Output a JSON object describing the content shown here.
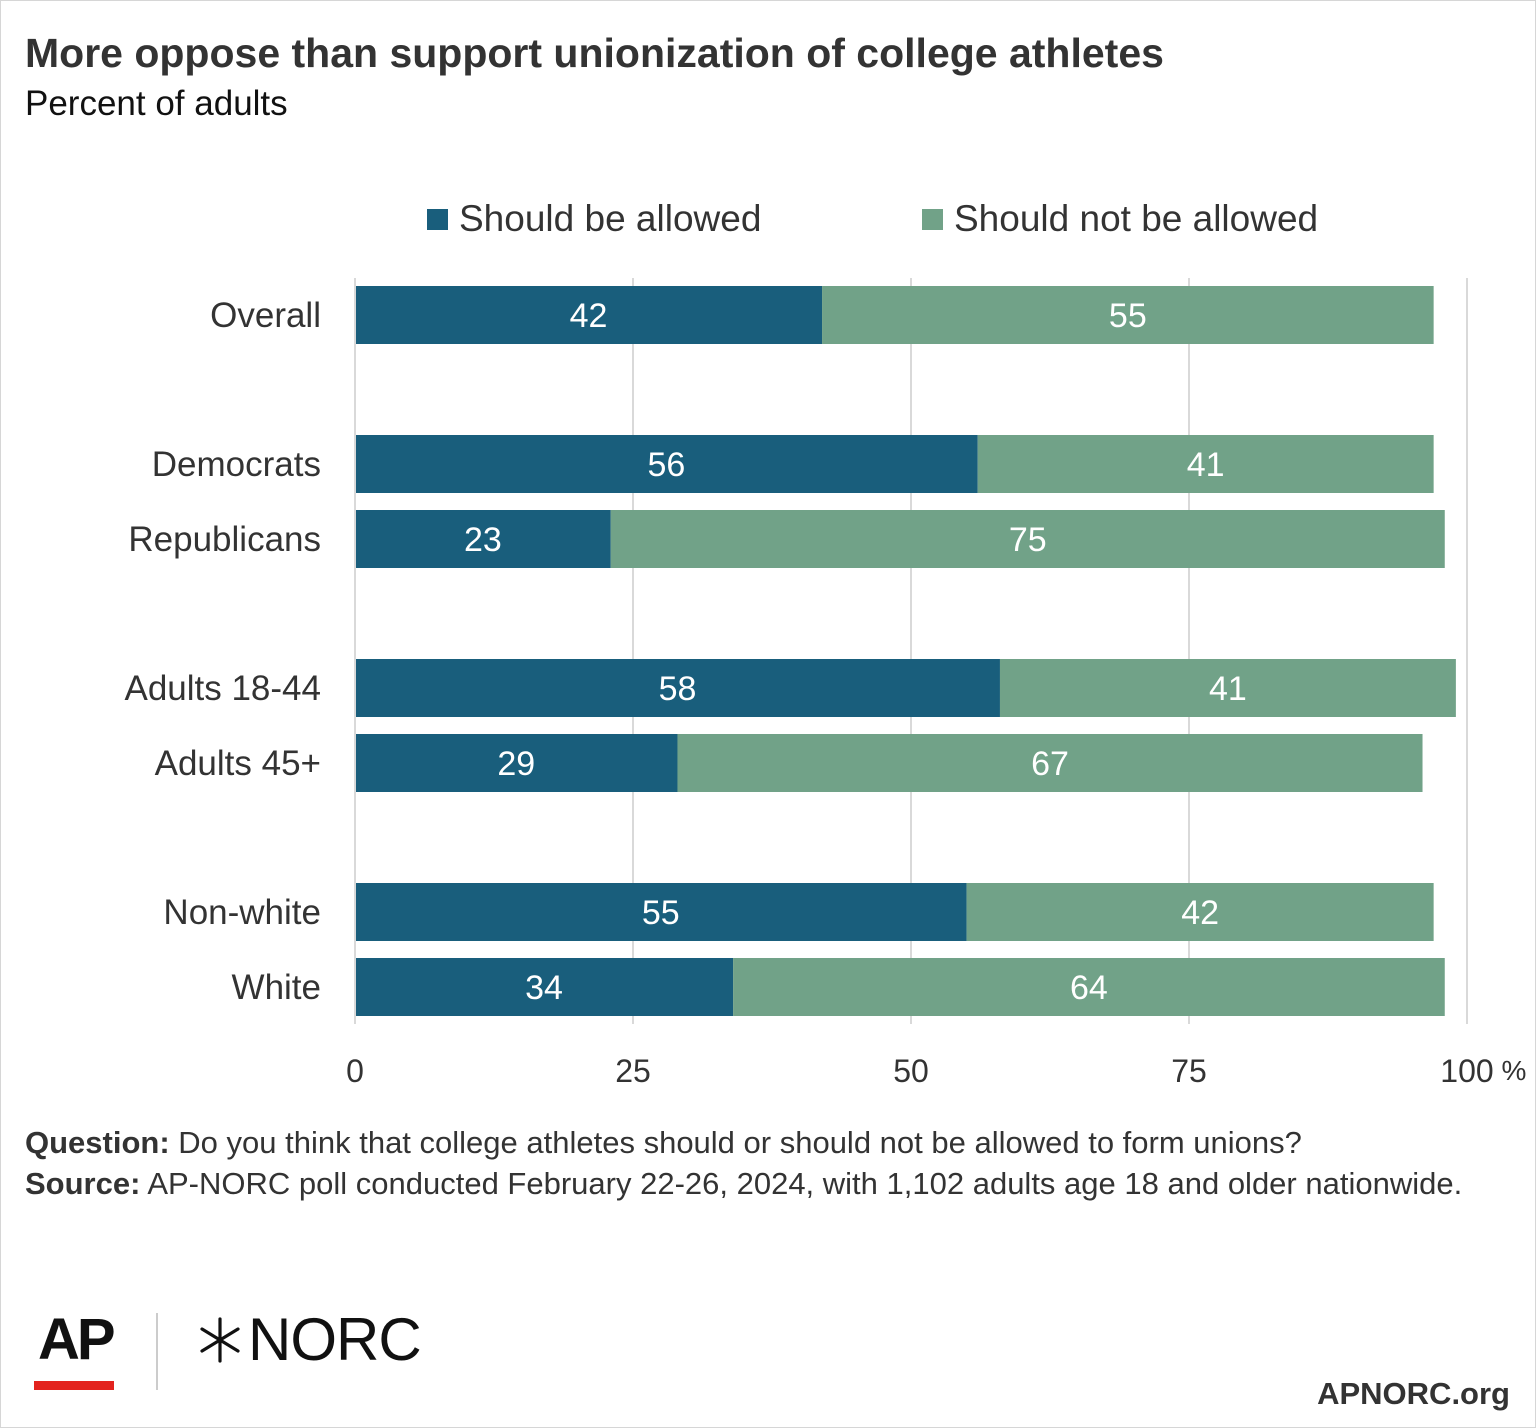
{
  "header": {
    "title": "More oppose than support unionization of college athletes",
    "subtitle": "Percent of adults"
  },
  "legend": {
    "items": [
      {
        "label": "Should be allowed",
        "color": "#195e7c"
      },
      {
        "label": "Should not be allowed",
        "color": "#71a288"
      }
    ]
  },
  "chart_data": {
    "type": "bar",
    "orientation": "horizontal",
    "stacked": true,
    "title": "More oppose than support unionization of college athletes",
    "subtitle": "Percent of adults",
    "categories": [
      "Overall",
      "Democrats",
      "Republicans",
      "Adults 18-44",
      "Adults 45+",
      "Non-white",
      "White"
    ],
    "groups": [
      [
        "Overall"
      ],
      [
        "Democrats",
        "Republicans"
      ],
      [
        "Adults 18-44",
        "Adults 45+"
      ],
      [
        "Non-white",
        "White"
      ]
    ],
    "series": [
      {
        "name": "Should be allowed",
        "color": "#195e7c",
        "values": [
          42,
          56,
          23,
          58,
          29,
          55,
          34
        ]
      },
      {
        "name": "Should not be allowed",
        "color": "#71a288",
        "values": [
          55,
          41,
          75,
          41,
          67,
          42,
          64
        ]
      }
    ],
    "xlim": [
      0,
      100
    ],
    "xticks": [
      0,
      25,
      50,
      75,
      100
    ],
    "xtick_labels": [
      "0",
      "25",
      "50",
      "75",
      "100"
    ],
    "x_unit": "%",
    "grid": true,
    "legend_position": "top",
    "data_labels": true
  },
  "footer": {
    "question_label": "Question:",
    "question_text": " Do you think that college athletes should or should not be allowed to form unions?",
    "source_label": "Source:",
    "source_text": " AP-NORC poll conducted February 22-26, 2024, with 1,102 adults age 18 and older nationwide.",
    "logo_ap": "AP",
    "logo_norc": "NORC",
    "site": "APNORC.org"
  }
}
